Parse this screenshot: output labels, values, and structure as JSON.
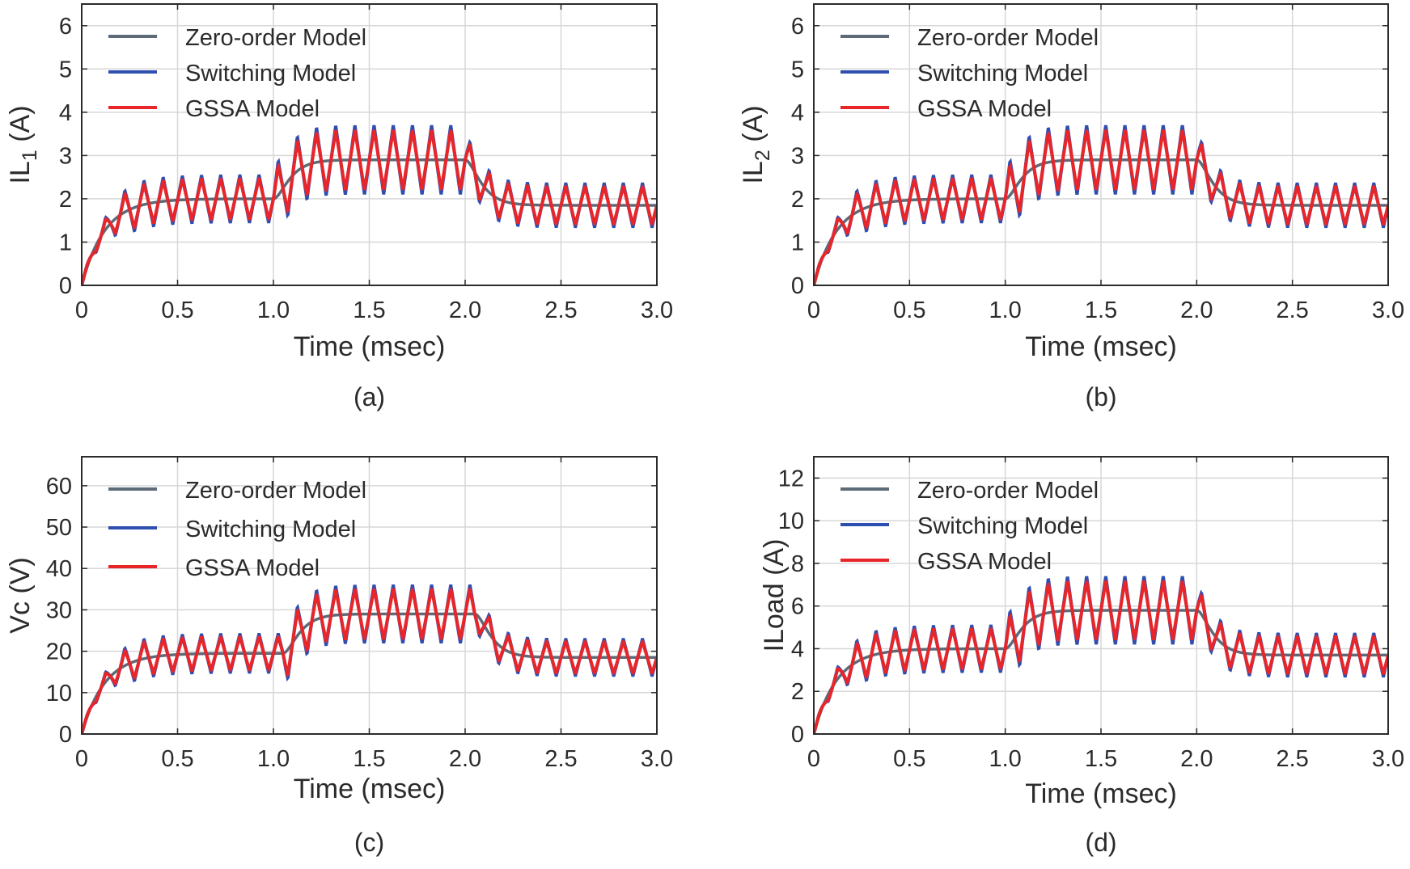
{
  "colors": {
    "zero_order": "#5d6b78",
    "switching": "#2f4fb0",
    "gssa": "#e8262a",
    "grid": "#d7d7d7",
    "axes": "#2b2b2b"
  },
  "legend_entries": [
    "Zero-order Model",
    "Switching Model",
    "GSSA Model"
  ],
  "chart_data": [
    {
      "type": "line",
      "panel": "(a)",
      "caption": "(a)",
      "xlabel": "Time (msec)",
      "ylabel": "IL",
      "ylabel_sub": "1",
      "ylabel_unit": " (A)",
      "xlim": [
        0,
        3.0
      ],
      "ylim": [
        0,
        6.5
      ],
      "xticks": [
        0,
        0.5,
        1.0,
        1.5,
        2.0,
        2.5,
        3.0
      ],
      "xtick_labels": [
        "0",
        "0.5",
        "1.0",
        "1.5",
        "2.0",
        "2.5",
        "3.0"
      ],
      "yticks": [
        0,
        1,
        2,
        3,
        4,
        5,
        6
      ],
      "ytick_labels": [
        "0",
        "1",
        "2",
        "3",
        "4",
        "5",
        "6"
      ],
      "grid": true,
      "legend": [
        "Zero-order Model",
        "Switching Model",
        "GSSA Model"
      ],
      "legend_position": "top-left",
      "segments": [
        {
          "t_start": 0.0,
          "t_end": 1.0,
          "level": 2.0
        },
        {
          "t_start": 1.0,
          "t_end": 2.0,
          "level": 2.9
        },
        {
          "t_start": 2.0,
          "t_end": 3.0,
          "level": 1.85
        }
      ],
      "ripple_amplitude_per_level": 0.25,
      "ripple_period_ms": 0.1,
      "series": [
        {
          "name": "Zero-order Model",
          "role": "average"
        },
        {
          "name": "Switching Model",
          "role": "switching"
        },
        {
          "name": "GSSA Model",
          "role": "gssa"
        }
      ]
    },
    {
      "type": "line",
      "panel": "(b)",
      "caption": "(b)",
      "xlabel": "Time (msec)",
      "ylabel": "IL",
      "ylabel_sub": "2",
      "ylabel_unit": " (A)",
      "xlim": [
        0,
        3.0
      ],
      "ylim": [
        0,
        6.5
      ],
      "xticks": [
        0,
        0.5,
        1.0,
        1.5,
        2.0,
        2.5,
        3.0
      ],
      "xtick_labels": [
        "0",
        "0.5",
        "1.0",
        "1.5",
        "2.0",
        "2.5",
        "3.0"
      ],
      "yticks": [
        0,
        1,
        2,
        3,
        4,
        5,
        6
      ],
      "ytick_labels": [
        "0",
        "1",
        "2",
        "3",
        "4",
        "5",
        "6"
      ],
      "grid": true,
      "legend": [
        "Zero-order Model",
        "Switching Model",
        "GSSA Model"
      ],
      "legend_position": "top-left",
      "segments": [
        {
          "t_start": 0.0,
          "t_end": 1.0,
          "level": 2.0
        },
        {
          "t_start": 1.0,
          "t_end": 2.0,
          "level": 2.9
        },
        {
          "t_start": 2.0,
          "t_end": 3.0,
          "level": 1.85
        }
      ],
      "ripple_amplitude_per_level": 0.25,
      "ripple_period_ms": 0.1,
      "series": [
        {
          "name": "Zero-order Model",
          "role": "average"
        },
        {
          "name": "Switching Model",
          "role": "switching"
        },
        {
          "name": "GSSA Model",
          "role": "gssa"
        }
      ]
    },
    {
      "type": "line",
      "panel": "(c)",
      "caption": "(c)",
      "xlabel": "Time (msec)",
      "ylabel": "Vc (V)",
      "ylabel_sub": "",
      "ylabel_unit": "",
      "xlim": [
        0,
        3.0
      ],
      "ylim": [
        0,
        67
      ],
      "xticks": [
        0,
        0.5,
        1.0,
        1.5,
        2.0,
        2.5,
        3.0
      ],
      "xtick_labels": [
        "0",
        "0.5",
        "1.0",
        "1.5",
        "2.0",
        "2.5",
        "3.0"
      ],
      "yticks": [
        0,
        10,
        20,
        30,
        40,
        50,
        60
      ],
      "ytick_labels": [
        "0",
        "10",
        "20",
        "30",
        "40",
        "50",
        "60"
      ],
      "grid": true,
      "legend": [
        "Zero-order Model",
        "Switching Model",
        "GSSA Model"
      ],
      "legend_position": "top-left",
      "segments": [
        {
          "t_start": 0.0,
          "t_end": 1.05,
          "level": 19.5
        },
        {
          "t_start": 1.05,
          "t_end": 2.05,
          "level": 29.0
        },
        {
          "t_start": 2.05,
          "t_end": 3.0,
          "level": 18.5
        }
      ],
      "ripple_amplitude_per_level": 0.22,
      "ripple_period_ms": 0.1,
      "series": [
        {
          "name": "Zero-order Model",
          "role": "average"
        },
        {
          "name": "Switching Model",
          "role": "switching"
        },
        {
          "name": "GSSA Model",
          "role": "gssa"
        }
      ]
    },
    {
      "type": "line",
      "panel": "(d)",
      "caption": "(d)",
      "xlabel": "Time (msec)",
      "ylabel": "ILoad (A)",
      "ylabel_sub": "",
      "ylabel_unit": "",
      "xlim": [
        0,
        3.0
      ],
      "ylim": [
        0,
        13
      ],
      "xticks": [
        0,
        0.5,
        1.0,
        1.5,
        2.0,
        2.5,
        3.0
      ],
      "xtick_labels": [
        "0",
        "0.5",
        "1.0",
        "1.5",
        "2.0",
        "2.5",
        "3.0"
      ],
      "yticks": [
        0,
        2,
        4,
        6,
        8,
        10,
        12
      ],
      "ytick_labels": [
        "0",
        "2",
        "4",
        "6",
        "8",
        "10",
        "12"
      ],
      "grid": true,
      "legend": [
        "Zero-order Model",
        " Switching Model",
        "GSSA Model"
      ],
      "legend_position": "top-left",
      "segments": [
        {
          "t_start": 0.0,
          "t_end": 1.0,
          "level": 4.0
        },
        {
          "t_start": 1.0,
          "t_end": 2.0,
          "level": 5.8
        },
        {
          "t_start": 2.0,
          "t_end": 3.0,
          "level": 3.7
        }
      ],
      "ripple_amplitude_per_level": 0.25,
      "ripple_period_ms": 0.1,
      "series": [
        {
          "name": "Zero-order Model",
          "role": "average"
        },
        {
          "name": "Switching Model",
          "role": "switching"
        },
        {
          "name": "GSSA Model",
          "role": "gssa"
        }
      ]
    }
  ]
}
